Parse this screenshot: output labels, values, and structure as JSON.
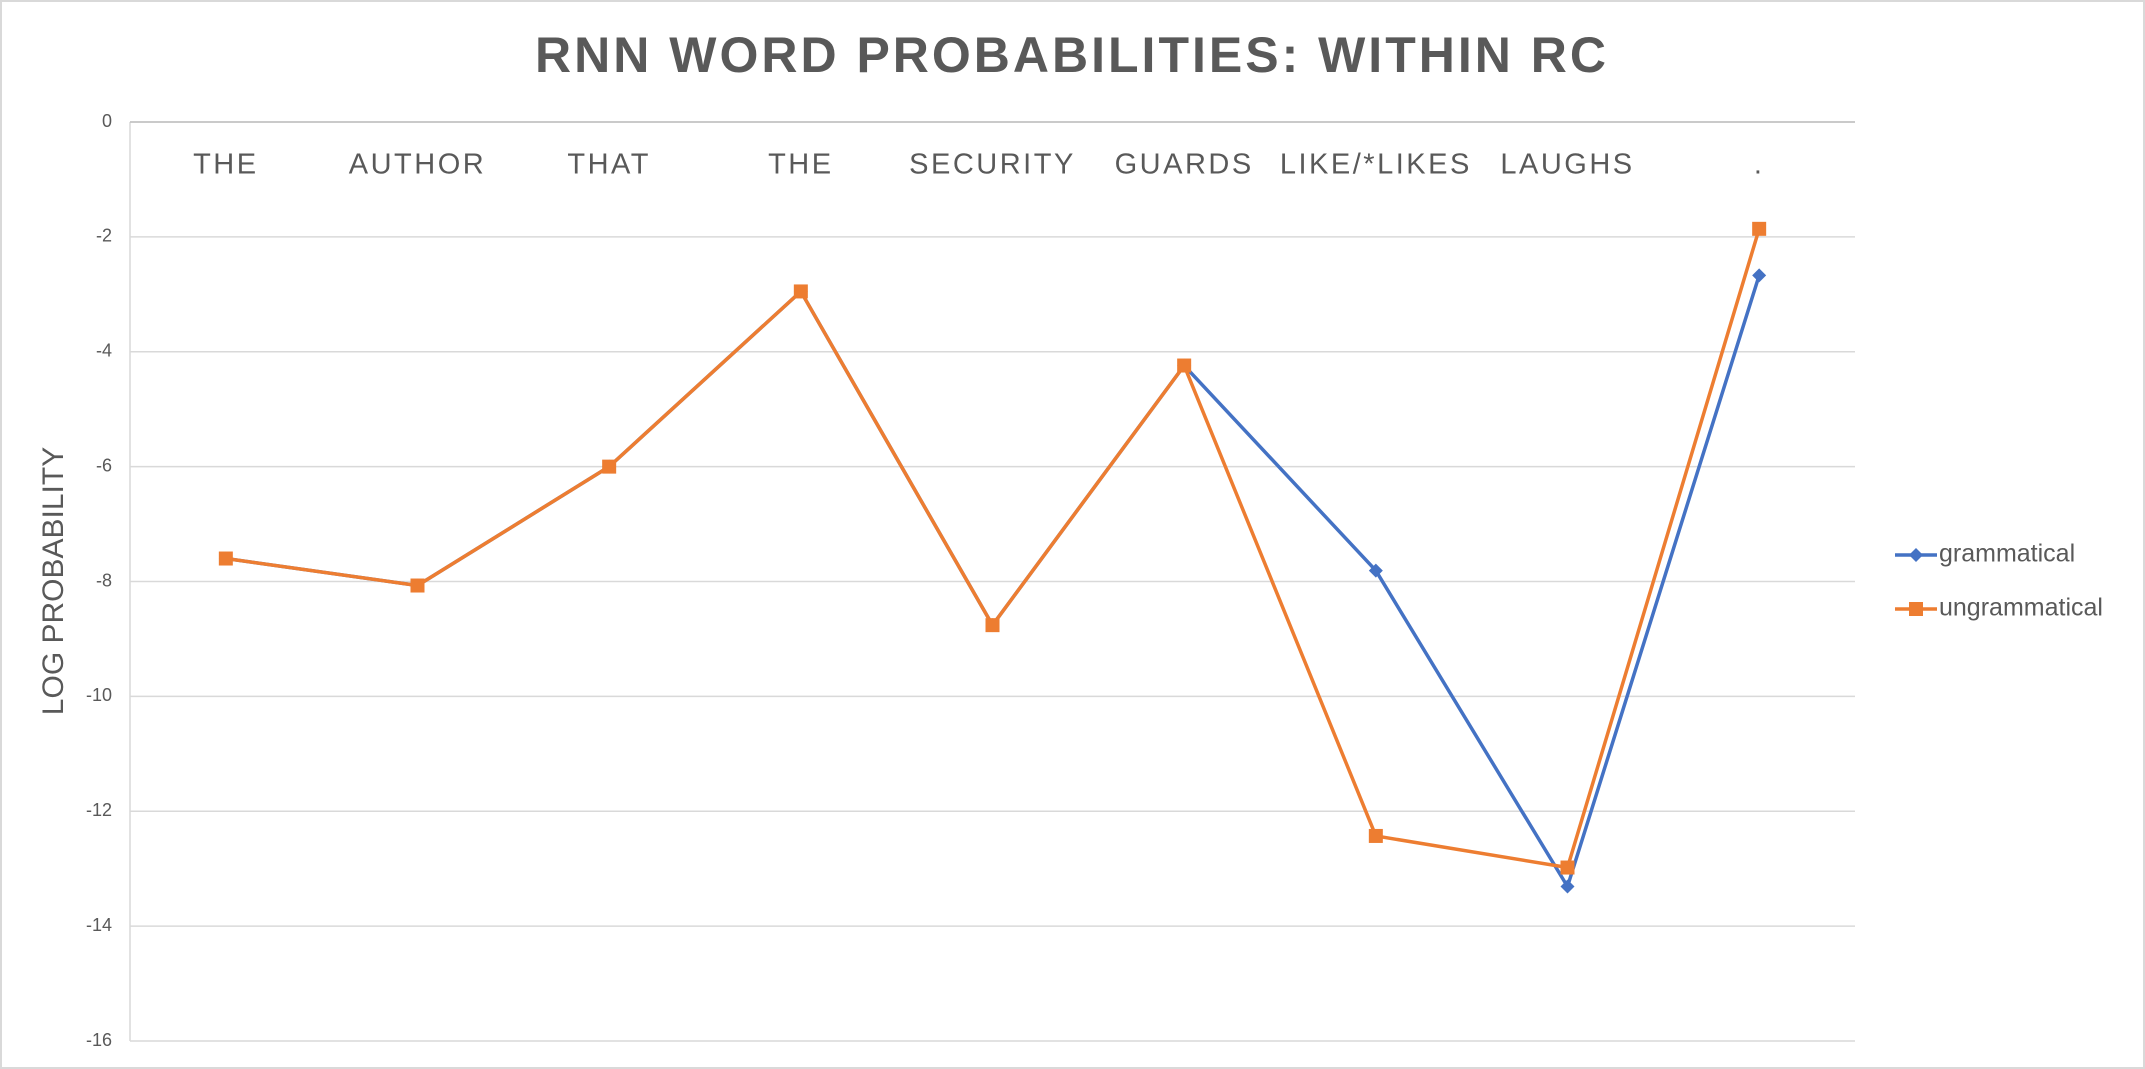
{
  "chart_data": {
    "type": "line",
    "title": "RNN WORD PROBABILITIES: WITHIN RC",
    "y_label": "LOG PROBABILITY",
    "categories": [
      "THE",
      "AUTHOR",
      "THAT",
      "THE",
      "SECURITY",
      "GUARDS",
      "LIKE/*LIKES",
      "LAUGHS",
      "."
    ],
    "series": [
      {
        "name": "grammatical",
        "color": "#4472c4",
        "marker": "diamond",
        "values": [
          -7.6,
          -8.07,
          -6.0,
          -2.95,
          -8.76,
          -4.24,
          -7.81,
          -13.31,
          -2.67
        ]
      },
      {
        "name": "ungrammatical",
        "color": "#ed7d31",
        "marker": "square",
        "values": [
          -7.6,
          -8.07,
          -6.0,
          -2.95,
          -8.76,
          -4.24,
          -12.43,
          -12.98,
          -1.86
        ]
      }
    ],
    "ylim": [
      -16,
      0
    ],
    "yticks": [
      0,
      -2,
      -4,
      -6,
      -8,
      -10,
      -12,
      -14,
      -16
    ],
    "grid": true,
    "legend": "right"
  }
}
